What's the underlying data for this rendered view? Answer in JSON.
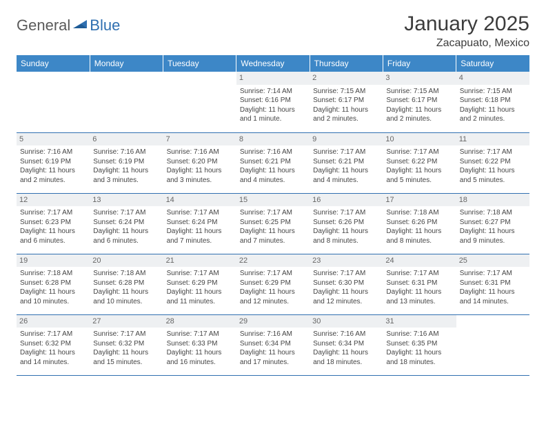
{
  "brand": {
    "general": "General",
    "blue": "Blue"
  },
  "title": "January 2025",
  "location": "Zacapuato, Mexico",
  "colors": {
    "header_bg": "#3d87c7",
    "border": "#2f6fb0",
    "daynum_bg": "#eef0f2",
    "text": "#444444"
  },
  "weekdays": [
    "Sunday",
    "Monday",
    "Tuesday",
    "Wednesday",
    "Thursday",
    "Friday",
    "Saturday"
  ],
  "weeks": [
    [
      null,
      null,
      null,
      {
        "d": "1",
        "sr": "7:14 AM",
        "ss": "6:16 PM",
        "dl": "11 hours and 1 minute."
      },
      {
        "d": "2",
        "sr": "7:15 AM",
        "ss": "6:17 PM",
        "dl": "11 hours and 2 minutes."
      },
      {
        "d": "3",
        "sr": "7:15 AM",
        "ss": "6:17 PM",
        "dl": "11 hours and 2 minutes."
      },
      {
        "d": "4",
        "sr": "7:15 AM",
        "ss": "6:18 PM",
        "dl": "11 hours and 2 minutes."
      }
    ],
    [
      {
        "d": "5",
        "sr": "7:16 AM",
        "ss": "6:19 PM",
        "dl": "11 hours and 2 minutes."
      },
      {
        "d": "6",
        "sr": "7:16 AM",
        "ss": "6:19 PM",
        "dl": "11 hours and 3 minutes."
      },
      {
        "d": "7",
        "sr": "7:16 AM",
        "ss": "6:20 PM",
        "dl": "11 hours and 3 minutes."
      },
      {
        "d": "8",
        "sr": "7:16 AM",
        "ss": "6:21 PM",
        "dl": "11 hours and 4 minutes."
      },
      {
        "d": "9",
        "sr": "7:17 AM",
        "ss": "6:21 PM",
        "dl": "11 hours and 4 minutes."
      },
      {
        "d": "10",
        "sr": "7:17 AM",
        "ss": "6:22 PM",
        "dl": "11 hours and 5 minutes."
      },
      {
        "d": "11",
        "sr": "7:17 AM",
        "ss": "6:22 PM",
        "dl": "11 hours and 5 minutes."
      }
    ],
    [
      {
        "d": "12",
        "sr": "7:17 AM",
        "ss": "6:23 PM",
        "dl": "11 hours and 6 minutes."
      },
      {
        "d": "13",
        "sr": "7:17 AM",
        "ss": "6:24 PM",
        "dl": "11 hours and 6 minutes."
      },
      {
        "d": "14",
        "sr": "7:17 AM",
        "ss": "6:24 PM",
        "dl": "11 hours and 7 minutes."
      },
      {
        "d": "15",
        "sr": "7:17 AM",
        "ss": "6:25 PM",
        "dl": "11 hours and 7 minutes."
      },
      {
        "d": "16",
        "sr": "7:17 AM",
        "ss": "6:26 PM",
        "dl": "11 hours and 8 minutes."
      },
      {
        "d": "17",
        "sr": "7:18 AM",
        "ss": "6:26 PM",
        "dl": "11 hours and 8 minutes."
      },
      {
        "d": "18",
        "sr": "7:18 AM",
        "ss": "6:27 PM",
        "dl": "11 hours and 9 minutes."
      }
    ],
    [
      {
        "d": "19",
        "sr": "7:18 AM",
        "ss": "6:28 PM",
        "dl": "11 hours and 10 minutes."
      },
      {
        "d": "20",
        "sr": "7:18 AM",
        "ss": "6:28 PM",
        "dl": "11 hours and 10 minutes."
      },
      {
        "d": "21",
        "sr": "7:17 AM",
        "ss": "6:29 PM",
        "dl": "11 hours and 11 minutes."
      },
      {
        "d": "22",
        "sr": "7:17 AM",
        "ss": "6:29 PM",
        "dl": "11 hours and 12 minutes."
      },
      {
        "d": "23",
        "sr": "7:17 AM",
        "ss": "6:30 PM",
        "dl": "11 hours and 12 minutes."
      },
      {
        "d": "24",
        "sr": "7:17 AM",
        "ss": "6:31 PM",
        "dl": "11 hours and 13 minutes."
      },
      {
        "d": "25",
        "sr": "7:17 AM",
        "ss": "6:31 PM",
        "dl": "11 hours and 14 minutes."
      }
    ],
    [
      {
        "d": "26",
        "sr": "7:17 AM",
        "ss": "6:32 PM",
        "dl": "11 hours and 14 minutes."
      },
      {
        "d": "27",
        "sr": "7:17 AM",
        "ss": "6:32 PM",
        "dl": "11 hours and 15 minutes."
      },
      {
        "d": "28",
        "sr": "7:17 AM",
        "ss": "6:33 PM",
        "dl": "11 hours and 16 minutes."
      },
      {
        "d": "29",
        "sr": "7:16 AM",
        "ss": "6:34 PM",
        "dl": "11 hours and 17 minutes."
      },
      {
        "d": "30",
        "sr": "7:16 AM",
        "ss": "6:34 PM",
        "dl": "11 hours and 18 minutes."
      },
      {
        "d": "31",
        "sr": "7:16 AM",
        "ss": "6:35 PM",
        "dl": "11 hours and 18 minutes."
      },
      null
    ]
  ],
  "labels": {
    "sunrise": "Sunrise:",
    "sunset": "Sunset:",
    "daylight": "Daylight:"
  }
}
